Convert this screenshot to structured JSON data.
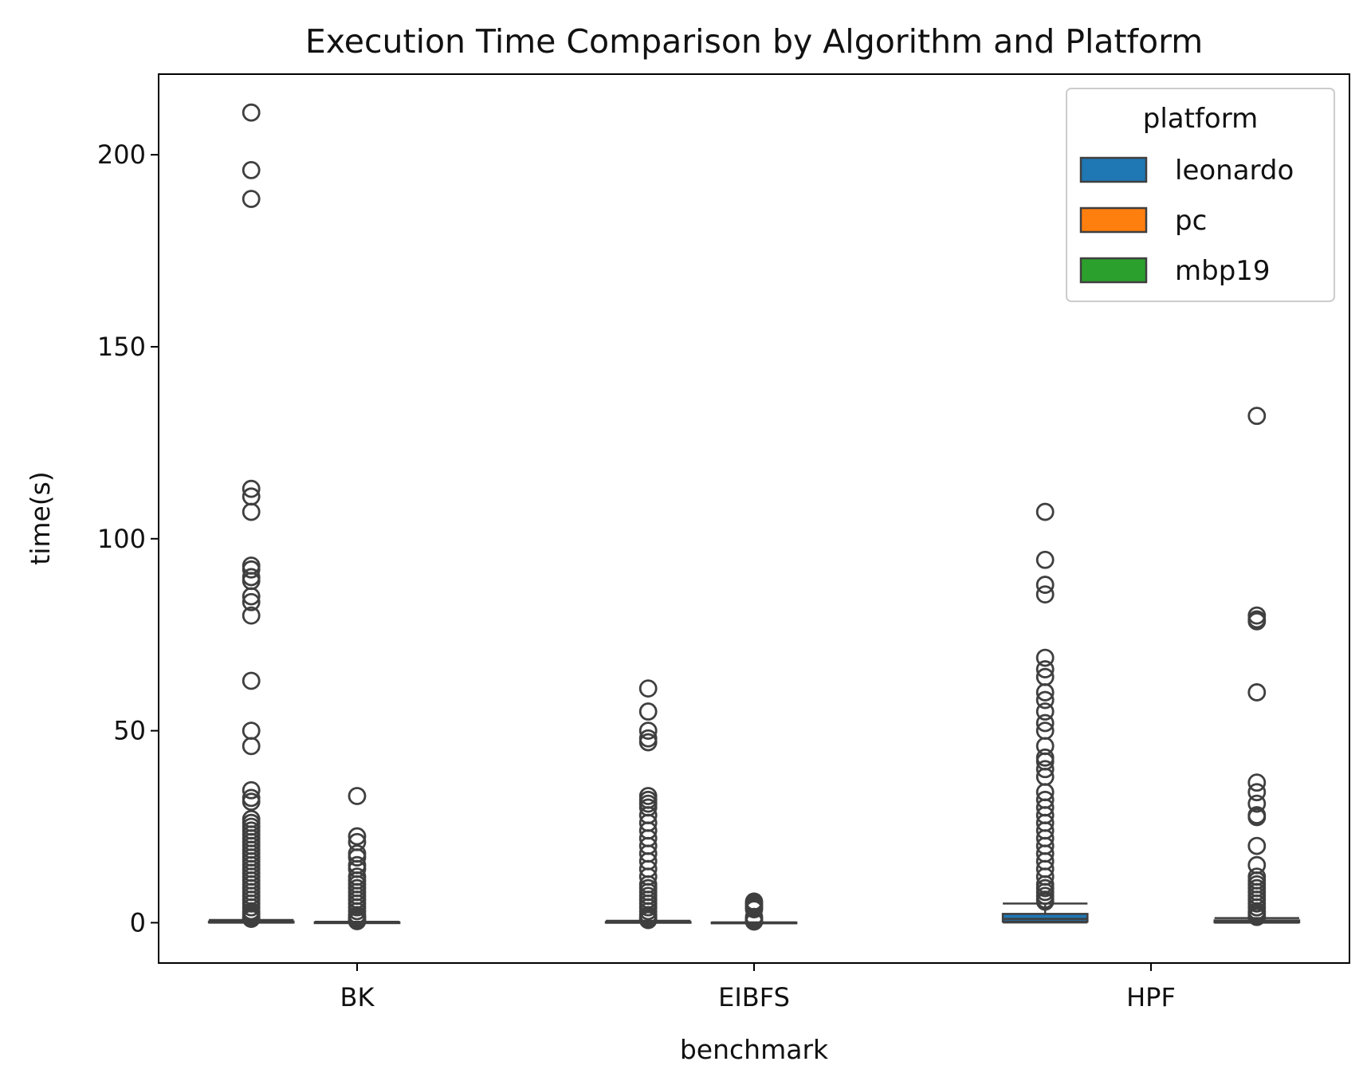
{
  "chart_data": {
    "type": "box",
    "title": "Execution Time Comparison by Algorithm and Platform",
    "xlabel": "benchmark",
    "ylabel": "time(s)",
    "categories": [
      "BK",
      "EIBFS",
      "HPF"
    ],
    "ylim": [
      -10.5,
      221
    ],
    "yticks": [
      0,
      50,
      100,
      150,
      200
    ],
    "legend": {
      "title": "platform",
      "placement": "top-right",
      "entries": [
        {
          "name": "leonardo",
          "color": "#1f77b4"
        },
        {
          "name": "pc",
          "color": "#ff7f0e"
        },
        {
          "name": "mbp19",
          "color": "#2ca02c"
        }
      ]
    },
    "groups": [
      {
        "category": "BK",
        "boxes": [
          {
            "slot": 0,
            "platform": "leonardo",
            "q1": 0.05,
            "median": 0.1,
            "q3": 0.3,
            "whisker_low": 0.0,
            "whisker_high": 0.7,
            "outliers": [
              211,
              196,
              188.5,
              113,
              111,
              107,
              93,
              92,
              90,
              89,
              85,
              83.5,
              80,
              63,
              50,
              46,
              34.5,
              32.5,
              31.5,
              27,
              26,
              25,
              24,
              23,
              22,
              21,
              20,
              19,
              18,
              17,
              16,
              15,
              14,
              13,
              12,
              11,
              10,
              9,
              8,
              7,
              6,
              5,
              4,
              3,
              2.5,
              2,
              1.5,
              1.2,
              1.0
            ]
          },
          {
            "slot": 1,
            "platform": "pc",
            "q1": 0.02,
            "median": 0.05,
            "q3": 0.1,
            "whisker_low": 0.0,
            "whisker_high": 0.25,
            "outliers": [
              33,
              22.5,
              21,
              18,
              17,
              15,
              14,
              12,
              11,
              10,
              9,
              8,
              7,
              6,
              5,
              4,
              3,
              2,
              1.5,
              1,
              0.6,
              0.4
            ]
          }
        ]
      },
      {
        "category": "EIBFS",
        "boxes": [
          {
            "slot": 0,
            "platform": "leonardo",
            "q1": 0.03,
            "median": 0.08,
            "q3": 0.2,
            "whisker_low": 0.0,
            "whisker_high": 0.5,
            "outliers": [
              61,
              55,
              50,
              48,
              47,
              33,
              32,
              31,
              30,
              28,
              26,
              24,
              22,
              20,
              18,
              16,
              14,
              12,
              10,
              9,
              8,
              7,
              6,
              5,
              4,
              3,
              2,
              1.5,
              1,
              0.7
            ]
          },
          {
            "slot": 1,
            "platform": "pc",
            "q1": 0.01,
            "median": 0.02,
            "q3": 0.05,
            "whisker_low": 0.0,
            "whisker_high": 0.1,
            "outliers": [
              5.5,
              5,
              4.5,
              4,
              3.5,
              1.5,
              1,
              0.5,
              0.3
            ]
          }
        ]
      },
      {
        "category": "HPF",
        "boxes": [
          {
            "slot": 0,
            "platform": "leonardo",
            "q1": 0.3,
            "median": 1.0,
            "q3": 2.3,
            "whisker_low": 0.05,
            "whisker_high": 5.0,
            "outliers": [
              107,
              94.5,
              88,
              85.5,
              69,
              66,
              64,
              60,
              58,
              55,
              52,
              50,
              46,
              43,
              42,
              40,
              38,
              34,
              32,
              30,
              28,
              26,
              24,
              22,
              20,
              18,
              16,
              14,
              12,
              10,
              9,
              8,
              7,
              6,
              5.5
            ]
          },
          {
            "slot": 2,
            "platform": "mbp19",
            "q1": 0.1,
            "median": 0.25,
            "q3": 0.6,
            "whisker_low": 0.0,
            "whisker_high": 1.2,
            "outliers": [
              132,
              80,
              79,
              78.5,
              60,
              36.5,
              34,
              31,
              28,
              27.5,
              20,
              15,
              12,
              11,
              10,
              9,
              8,
              7,
              6,
              5,
              4,
              3,
              2.5,
              2,
              1.5
            ]
          }
        ]
      }
    ]
  }
}
